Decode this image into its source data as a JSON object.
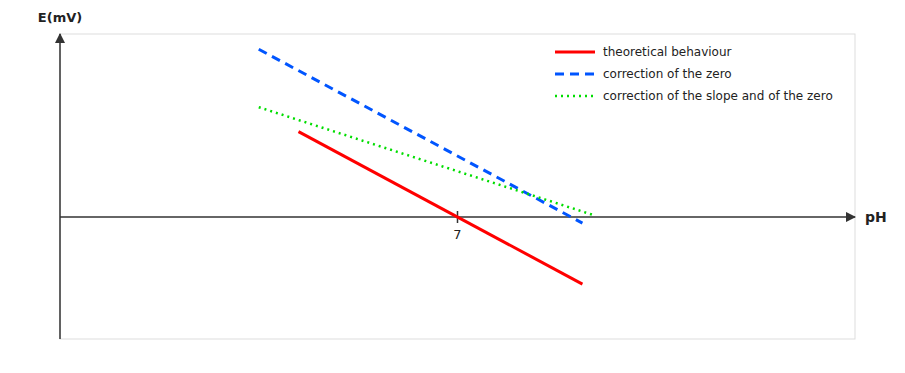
{
  "chart_data": {
    "type": "line",
    "xlabel": "pH",
    "ylabel": "E(mV)",
    "xlim": [
      0,
      14
    ],
    "ylim": [
      -400,
      600
    ],
    "xticks": [
      7
    ],
    "tick_labels": "x",
    "grid": false,
    "legend": "upper right",
    "series": [
      {
        "name": "theoretical behaviour",
        "color": "#ff0000",
        "line_style": "solid",
        "x": [
          4.2,
          9.2
        ],
        "values": [
          280,
          -220
        ]
      },
      {
        "name": "correction of the zero",
        "color": "#0055ff",
        "line_style": "dashed",
        "x": [
          3.5,
          9.2
        ],
        "values": [
          550,
          -20
        ]
      },
      {
        "name": "correction of the slope and of the zero",
        "color": "#00dd00",
        "line_style": "dotted",
        "x": [
          3.5,
          9.4
        ],
        "values": [
          360,
          6
        ]
      }
    ]
  }
}
